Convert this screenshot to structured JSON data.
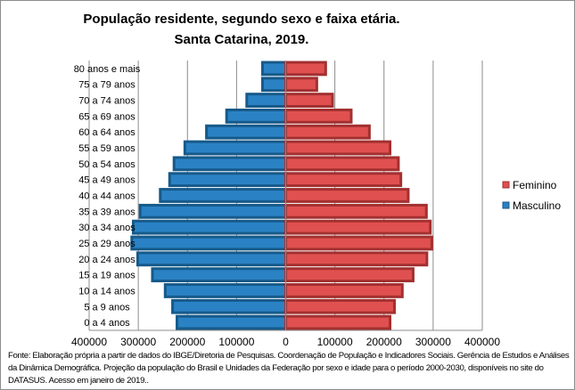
{
  "chart_data": {
    "type": "bar",
    "orientation": "horizontal",
    "layout": "population-pyramid",
    "title": "População residente, segundo sexo e faixa etária.",
    "subtitle": "Santa Catarina, 2019.",
    "categories": [
      "80 anos e mais",
      "75 a 79 anos",
      "70 a 74 anos",
      "65 a 69 anos",
      "60 a 64 anos",
      "55 a 59 anos",
      "50 a 54 anos",
      "45 a 49 anos",
      "40 a 44 anos",
      "35 a 39 anos",
      "30 a 34 anos",
      "25 a 29 anos",
      "20 a 24 anos",
      "15 a 19 anos",
      "10 a 14 anos",
      "5 a 9 anos",
      "0 a 4 anos"
    ],
    "series": [
      {
        "name": "Feminino",
        "color": "#e05050",
        "border": "#a33030",
        "values": [
          84000,
          66000,
          98000,
          136000,
          173000,
          215000,
          232000,
          237000,
          252000,
          289000,
          297000,
          300000,
          290000,
          262000,
          240000,
          224000,
          215000
        ]
      },
      {
        "name": "Masculino",
        "color": "#2a82c4",
        "border": "#165a8a",
        "values": [
          50000,
          50000,
          82000,
          123000,
          164000,
          208000,
          230000,
          239000,
          258000,
          299000,
          313000,
          316000,
          304000,
          274000,
          248000,
          233000,
          224000
        ]
      }
    ],
    "xlim": [
      -400000,
      400000
    ],
    "xticks": [
      -400000,
      -300000,
      -200000,
      -100000,
      0,
      100000,
      200000,
      300000,
      400000
    ],
    "xtick_labels": [
      "400000",
      "300000",
      "200000",
      "100000",
      "0",
      "100000",
      "200000",
      "300000",
      "400000"
    ],
    "grid": true,
    "legend": "right",
    "footnote": "Fonte:  Elaboração própria a partir de dados do  IBGE/Diretoria de Pesquisas. Coordenação de População e Indicadores Sociais. Gerência de Estudos e Análises da Dinâmica Demográfica. Projeção da população do Brasil e Unidades da Federação por sexo e idade para o período 2000-2030, disponíveis no site do DATASUS. Acesso em  janeiro de 2019.."
  }
}
